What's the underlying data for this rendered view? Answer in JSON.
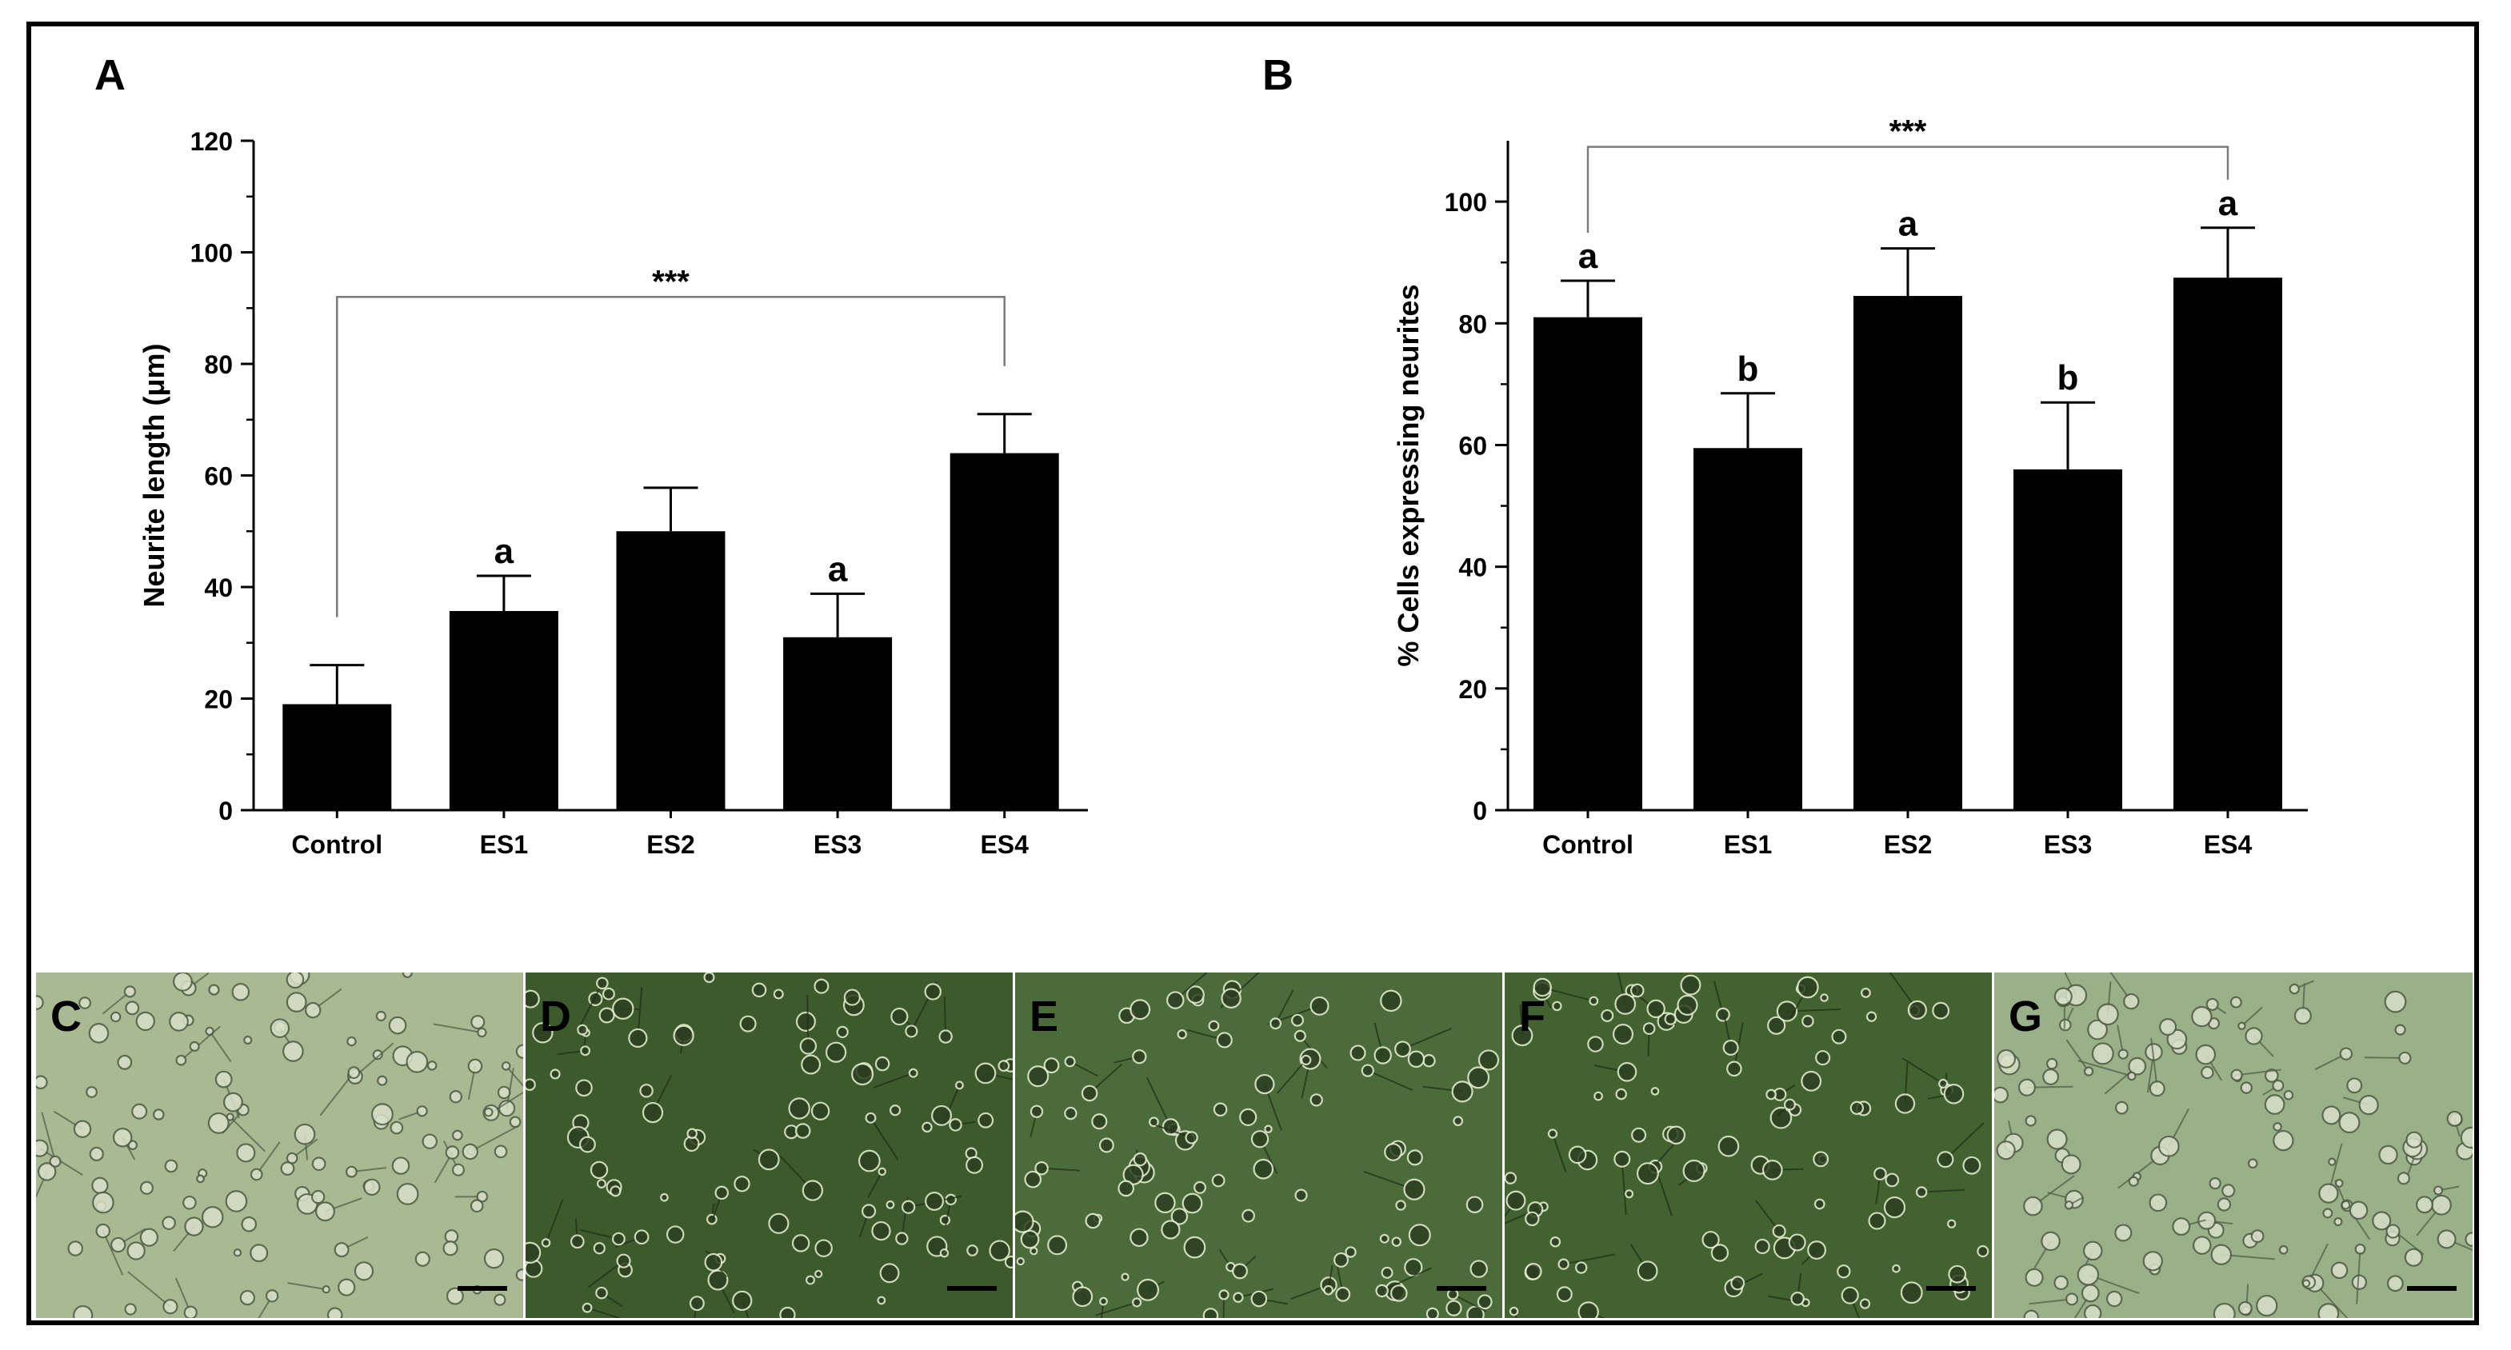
{
  "figure_type": "bar charts with cell micrographs",
  "chart_data": [
    {
      "panel": "A",
      "type": "bar",
      "categories": [
        "Control",
        "ES1",
        "ES2",
        "ES3",
        "ES4"
      ],
      "values": [
        19,
        35.7,
        50,
        31,
        64
      ],
      "errors": [
        7,
        6.3,
        7.8,
        7.8,
        7
      ],
      "letters": [
        "",
        "a",
        "",
        "a",
        ""
      ],
      "ylabel": "Neurite length (μm)",
      "ylim": [
        0,
        120
      ],
      "yticks": [
        0,
        20,
        40,
        60,
        80,
        100,
        120
      ],
      "ytick_labels": [
        "0",
        "20",
        "40",
        "60",
        "80",
        "100",
        "120"
      ],
      "significance": {
        "label": "***",
        "from": "Control",
        "to": "ES4",
        "y": 92
      },
      "bar_color": "#000000",
      "grid": false
    },
    {
      "panel": "B",
      "type": "bar",
      "categories": [
        "Control",
        "ES1",
        "ES2",
        "ES3",
        "ES4"
      ],
      "values": [
        81,
        59.5,
        84.5,
        56,
        87.5
      ],
      "errors": [
        6,
        9,
        7.8,
        11,
        8.2
      ],
      "letters": [
        "a",
        "b",
        "a",
        "b",
        "a"
      ],
      "ylabel": "% Cells expressing neurites",
      "ylim": [
        0,
        110
      ],
      "yticks": [
        0,
        20,
        40,
        60,
        80,
        100
      ],
      "ytick_labels": [
        "0",
        "20",
        "40",
        "60",
        "80",
        "100"
      ],
      "significance": {
        "label": "***",
        "from": "Control",
        "to": "ES4",
        "y": 109
      },
      "bar_color": "#000000",
      "grid": false
    }
  ],
  "photos": [
    {
      "label": "C",
      "bg": "#a9b992"
    },
    {
      "label": "D",
      "bg": "#3d5a2c"
    },
    {
      "label": "E",
      "bg": "#4c6b3a"
    },
    {
      "label": "F",
      "bg": "#42622f"
    },
    {
      "label": "G",
      "bg": "#9ab088"
    }
  ]
}
